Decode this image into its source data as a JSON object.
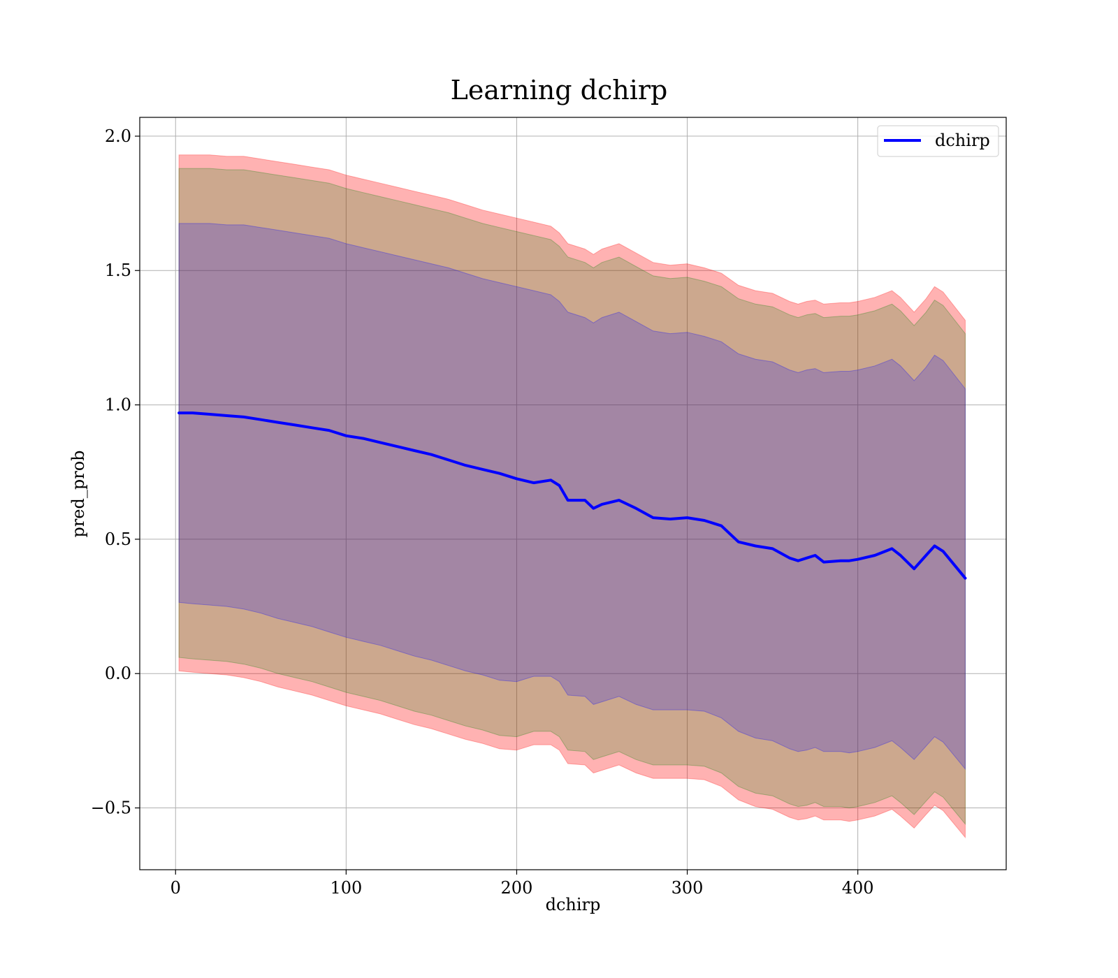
{
  "chart_data": {
    "type": "line",
    "title": "Learning dchirp",
    "xlabel": "dchirp",
    "ylabel": "pred_prob",
    "xlim": [
      -21,
      487
    ],
    "ylim": [
      -0.73,
      2.07
    ],
    "xticks": [
      0,
      100,
      200,
      300,
      400
    ],
    "xtick_labels": [
      "0",
      "100",
      "200",
      "300",
      "400"
    ],
    "yticks": [
      -0.5,
      0.0,
      0.5,
      1.0,
      1.5,
      2.0
    ],
    "ytick_labels": [
      "−0.5",
      "0.0",
      "0.5",
      "1.0",
      "1.5",
      "2.0"
    ],
    "grid": true,
    "legend": {
      "position": "top-right",
      "entries": [
        "dchirp"
      ]
    },
    "series": [
      {
        "name": "dchirp",
        "color": "#0000ff",
        "x": [
          2,
          10,
          20,
          30,
          40,
          50,
          60,
          70,
          80,
          90,
          100,
          110,
          120,
          130,
          140,
          150,
          160,
          170,
          180,
          190,
          200,
          210,
          220,
          225,
          230,
          240,
          245,
          250,
          260,
          270,
          280,
          290,
          300,
          310,
          320,
          330,
          340,
          350,
          360,
          365,
          370,
          375,
          380,
          390,
          395,
          400,
          410,
          420,
          425,
          433,
          440,
          445,
          450,
          463
        ],
        "y": [
          0.97,
          0.97,
          0.965,
          0.96,
          0.955,
          0.945,
          0.935,
          0.925,
          0.915,
          0.905,
          0.885,
          0.875,
          0.86,
          0.845,
          0.83,
          0.815,
          0.795,
          0.775,
          0.76,
          0.745,
          0.725,
          0.71,
          0.72,
          0.7,
          0.645,
          0.645,
          0.615,
          0.63,
          0.645,
          0.615,
          0.58,
          0.575,
          0.58,
          0.57,
          0.55,
          0.49,
          0.475,
          0.465,
          0.43,
          0.42,
          0.43,
          0.44,
          0.415,
          0.42,
          0.42,
          0.425,
          0.44,
          0.465,
          0.44,
          0.39,
          0.44,
          0.475,
          0.455,
          0.355
        ]
      }
    ],
    "bands": [
      {
        "color": "#ff0000",
        "opacity": 0.3,
        "lower": [
          0.01,
          0.005,
          0.0,
          -0.005,
          -0.015,
          -0.03,
          -0.05,
          -0.065,
          -0.08,
          -0.1,
          -0.12,
          -0.135,
          -0.15,
          -0.17,
          -0.19,
          -0.205,
          -0.225,
          -0.245,
          -0.26,
          -0.28,
          -0.285,
          -0.265,
          -0.265,
          -0.285,
          -0.335,
          -0.34,
          -0.37,
          -0.36,
          -0.34,
          -0.37,
          -0.39,
          -0.39,
          -0.39,
          -0.395,
          -0.42,
          -0.47,
          -0.495,
          -0.505,
          -0.535,
          -0.545,
          -0.54,
          -0.53,
          -0.545,
          -0.545,
          -0.55,
          -0.545,
          -0.53,
          -0.505,
          -0.53,
          -0.575,
          -0.525,
          -0.49,
          -0.51,
          -0.61
        ],
        "upper": [
          1.93,
          1.93,
          1.93,
          1.925,
          1.925,
          1.915,
          1.905,
          1.895,
          1.885,
          1.875,
          1.855,
          1.84,
          1.825,
          1.81,
          1.795,
          1.78,
          1.765,
          1.745,
          1.725,
          1.71,
          1.695,
          1.68,
          1.665,
          1.64,
          1.6,
          1.58,
          1.56,
          1.58,
          1.6,
          1.565,
          1.53,
          1.52,
          1.525,
          1.51,
          1.49,
          1.445,
          1.425,
          1.415,
          1.385,
          1.375,
          1.385,
          1.39,
          1.375,
          1.38,
          1.38,
          1.385,
          1.4,
          1.425,
          1.4,
          1.345,
          1.395,
          1.44,
          1.42,
          1.315
        ]
      },
      {
        "color": "#008000",
        "opacity": 0.2,
        "lower": [
          0.06,
          0.055,
          0.05,
          0.045,
          0.035,
          0.02,
          0.0,
          -0.015,
          -0.03,
          -0.05,
          -0.07,
          -0.085,
          -0.1,
          -0.12,
          -0.14,
          -0.155,
          -0.175,
          -0.195,
          -0.21,
          -0.23,
          -0.235,
          -0.215,
          -0.215,
          -0.235,
          -0.285,
          -0.29,
          -0.32,
          -0.31,
          -0.29,
          -0.32,
          -0.34,
          -0.34,
          -0.34,
          -0.345,
          -0.37,
          -0.42,
          -0.445,
          -0.455,
          -0.485,
          -0.495,
          -0.49,
          -0.48,
          -0.495,
          -0.495,
          -0.5,
          -0.495,
          -0.48,
          -0.455,
          -0.48,
          -0.525,
          -0.475,
          -0.44,
          -0.46,
          -0.56
        ],
        "upper": [
          1.88,
          1.88,
          1.88,
          1.875,
          1.875,
          1.865,
          1.855,
          1.845,
          1.835,
          1.825,
          1.805,
          1.79,
          1.775,
          1.76,
          1.745,
          1.73,
          1.715,
          1.695,
          1.675,
          1.66,
          1.645,
          1.63,
          1.615,
          1.59,
          1.55,
          1.53,
          1.51,
          1.53,
          1.55,
          1.515,
          1.48,
          1.47,
          1.475,
          1.46,
          1.44,
          1.395,
          1.375,
          1.365,
          1.335,
          1.325,
          1.335,
          1.34,
          1.325,
          1.33,
          1.33,
          1.335,
          1.35,
          1.375,
          1.35,
          1.295,
          1.345,
          1.39,
          1.37,
          1.265
        ]
      },
      {
        "color": "#0000ff",
        "opacity": 0.2,
        "lower": [
          0.265,
          0.26,
          0.255,
          0.25,
          0.24,
          0.225,
          0.205,
          0.19,
          0.175,
          0.155,
          0.135,
          0.12,
          0.105,
          0.085,
          0.065,
          0.05,
          0.03,
          0.01,
          -0.005,
          -0.025,
          -0.03,
          -0.01,
          -0.01,
          -0.03,
          -0.08,
          -0.085,
          -0.115,
          -0.105,
          -0.085,
          -0.115,
          -0.135,
          -0.135,
          -0.135,
          -0.14,
          -0.165,
          -0.215,
          -0.24,
          -0.25,
          -0.28,
          -0.29,
          -0.285,
          -0.275,
          -0.29,
          -0.29,
          -0.295,
          -0.29,
          -0.275,
          -0.25,
          -0.275,
          -0.32,
          -0.27,
          -0.235,
          -0.255,
          -0.355
        ],
        "upper": [
          1.675,
          1.675,
          1.675,
          1.67,
          1.67,
          1.66,
          1.65,
          1.64,
          1.63,
          1.62,
          1.6,
          1.585,
          1.57,
          1.555,
          1.54,
          1.525,
          1.51,
          1.49,
          1.47,
          1.455,
          1.44,
          1.425,
          1.41,
          1.385,
          1.345,
          1.325,
          1.305,
          1.325,
          1.345,
          1.31,
          1.275,
          1.265,
          1.27,
          1.255,
          1.235,
          1.19,
          1.17,
          1.16,
          1.13,
          1.12,
          1.13,
          1.135,
          1.12,
          1.125,
          1.125,
          1.13,
          1.145,
          1.17,
          1.145,
          1.09,
          1.14,
          1.185,
          1.165,
          1.06
        ]
      }
    ]
  }
}
